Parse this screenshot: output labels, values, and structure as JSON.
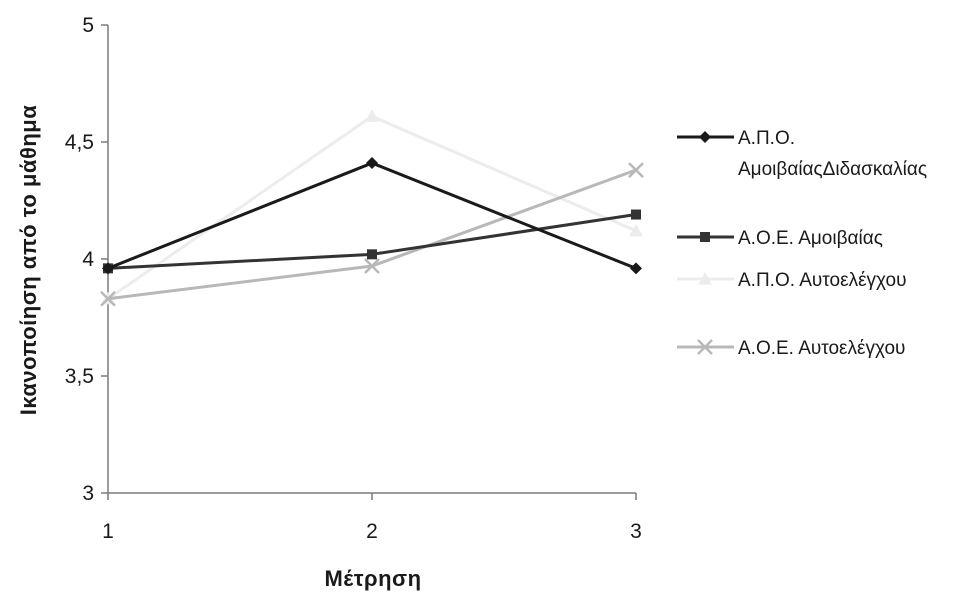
{
  "chart_data": {
    "type": "line",
    "title": "",
    "xlabel": "Μέτρηση",
    "ylabel": "Ικανοποίηση από το μάθημα",
    "categories": [
      "1",
      "2",
      "3"
    ],
    "ylim": [
      3,
      5
    ],
    "yticks": [
      "3",
      "3,5",
      "4",
      "4,5",
      "5"
    ],
    "ytick_values": [
      3,
      3.5,
      4,
      4.5,
      5
    ],
    "grid": false,
    "legend_position": "right",
    "series": [
      {
        "name": "Α.Π.Ο. ΑμοιβαίαςΔιδασκαλίας",
        "legend_lines": [
          "Α.Π.Ο.",
          "ΑμοιβαίαςΔιδασκαλίας"
        ],
        "values": [
          3.96,
          4.41,
          3.96
        ],
        "color": "#1a1a1a",
        "marker": "diamond"
      },
      {
        "name": "Α.Ο.Ε. Αμοιβαίας",
        "legend_lines": [
          "Α.Ο.Ε. Αμοιβαίας"
        ],
        "values": [
          3.96,
          4.02,
          4.19
        ],
        "color": "#333333",
        "marker": "square"
      },
      {
        "name": "Α.Π.Ο. Αυτοελέγχου",
        "legend_lines": [
          "Α.Π.Ο. Αυτοελέγχου"
        ],
        "values": [
          3.83,
          4.61,
          4.12
        ],
        "color": "#ececec",
        "marker": "triangle"
      },
      {
        "name": "Α.Ο.Ε. Αυτοελέγχου",
        "legend_lines": [
          "Α.Ο.Ε. Αυτοελέγχου"
        ],
        "values": [
          3.83,
          3.97,
          4.38
        ],
        "color": "#b8b8b8",
        "marker": "x"
      }
    ]
  }
}
